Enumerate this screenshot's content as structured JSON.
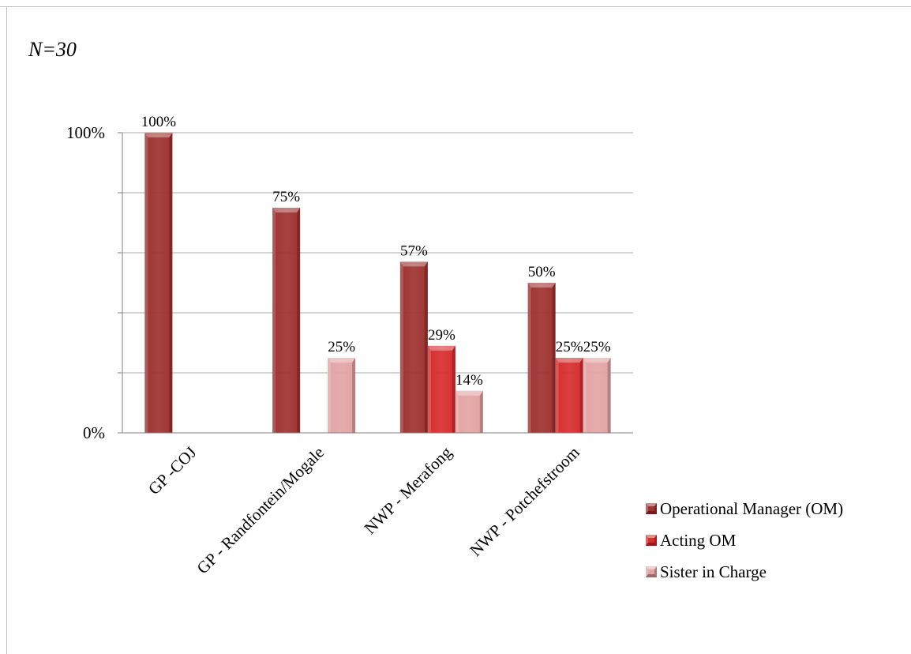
{
  "note": "N=30",
  "colors": {
    "om": "#9e3331",
    "acting": "#d72e2e",
    "sister": "#e3a4a5",
    "grid": "#a9a9a9",
    "axis": "#7f7f7f"
  },
  "chart_data": {
    "type": "bar",
    "categories": [
      "GP -COJ",
      "GP - Randfontein/Mogale",
      "NWP - Merafong",
      "NWP - Potchefstroom"
    ],
    "series": [
      {
        "name": "Operational Manager (OM)",
        "values": [
          100,
          75,
          57,
          50
        ],
        "labels": [
          "100%",
          "75%",
          "57%",
          "50%"
        ]
      },
      {
        "name": "Acting OM",
        "values": [
          null,
          null,
          29,
          25
        ],
        "labels": [
          "",
          "",
          "29%",
          "25%"
        ]
      },
      {
        "name": "Sister in Charge",
        "values": [
          null,
          25,
          14,
          25
        ],
        "labels": [
          "",
          "25%",
          "14%",
          "25%"
        ]
      }
    ],
    "yticks": [
      "0%",
      "100%"
    ],
    "ylim": [
      0,
      100
    ],
    "grid": true,
    "legend_position": "right"
  }
}
